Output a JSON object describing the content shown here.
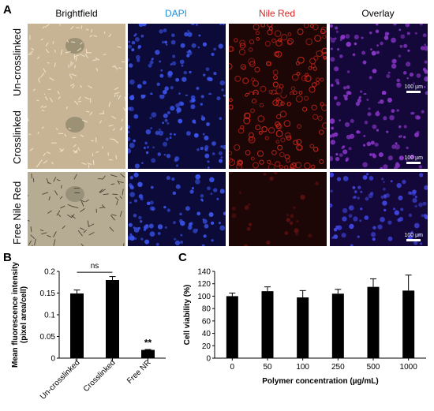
{
  "panel_a": {
    "letter": "A",
    "columns": [
      "Brightfield",
      "DAPI",
      "Nile Red",
      "Overlay"
    ],
    "column_colors": [
      "#000000",
      "#1f8fd8",
      "#e02020",
      "#000000"
    ],
    "rows": [
      "Un-crosslinked",
      "Crosslinked",
      "Free Nile Red"
    ],
    "scale_bar": "100 µm"
  },
  "chart_data": [
    {
      "type": "bar",
      "panel": "B",
      "categories": [
        "Un-crosslinked",
        "Crosslinked",
        "Free NR"
      ],
      "values": [
        0.149,
        0.18,
        0.019
      ],
      "errors": [
        0.008,
        0.008,
        0.001
      ],
      "ylabel": "Mean fluorescence intensity (pixel area/cell)",
      "ylim": [
        0,
        0.2
      ],
      "yticks": [
        "0",
        "0.05",
        "0.1",
        "0.15",
        "0.2"
      ],
      "annotations": [
        "ns",
        "**"
      ],
      "bar_color": "#000000"
    },
    {
      "type": "bar",
      "panel": "C",
      "categories": [
        "0",
        "50",
        "100",
        "250",
        "500",
        "1000"
      ],
      "values": [
        100,
        108,
        98,
        104,
        115,
        109
      ],
      "errors": [
        5,
        7,
        11,
        7,
        13,
        25
      ],
      "xlabel": "Polymer concentration (µg/mL)",
      "ylabel": "Cell viability (%)",
      "ylim": [
        0,
        140
      ],
      "yticks": [
        "0",
        "20",
        "40",
        "60",
        "80",
        "100",
        "120",
        "140"
      ],
      "bar_color": "#000000"
    }
  ]
}
